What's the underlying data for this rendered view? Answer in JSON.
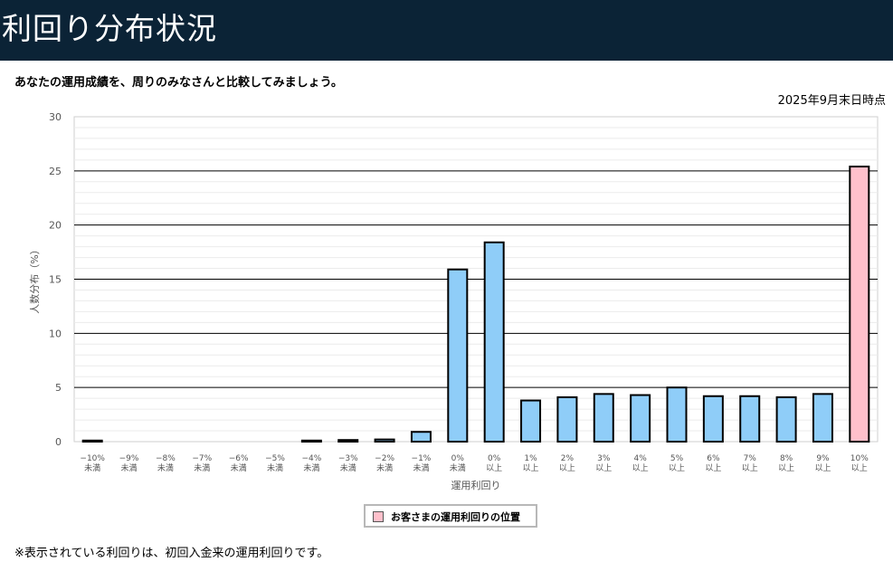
{
  "header": {
    "title": "利回り分布状況"
  },
  "intro": {
    "subtitle": "あなたの運用成績を、周りのみなさんと比較してみましょう。",
    "as_of": "2025年9月末日時点"
  },
  "legend": {
    "label": "お客さまの運用利回りの位置"
  },
  "footnote": "※表示されている利回りは、初回入金来の運用利回りです。",
  "colors": {
    "bar": "#8fcdf8",
    "highlight": "#ffc0cb",
    "header_bg": "#0b2336"
  },
  "chart_data": {
    "type": "bar",
    "xlabel": "運用利回り",
    "ylabel": "人数分布（%）",
    "ylim": [
      0,
      30
    ],
    "yticks": [
      0,
      5,
      10,
      15,
      20,
      25,
      30
    ],
    "grid": true,
    "categories": [
      [
        "−10%",
        "未満"
      ],
      [
        "−9%",
        "未満"
      ],
      [
        "−8%",
        "未満"
      ],
      [
        "−7%",
        "未満"
      ],
      [
        "−6%",
        "未満"
      ],
      [
        "−5%",
        "未満"
      ],
      [
        "−4%",
        "未満"
      ],
      [
        "−3%",
        "未満"
      ],
      [
        "−2%",
        "未満"
      ],
      [
        "−1%",
        "未満"
      ],
      [
        "0%",
        "未満"
      ],
      [
        "0%",
        "以上"
      ],
      [
        "1%",
        "以上"
      ],
      [
        "2%",
        "以上"
      ],
      [
        "3%",
        "以上"
      ],
      [
        "4%",
        "以上"
      ],
      [
        "5%",
        "以上"
      ],
      [
        "6%",
        "以上"
      ],
      [
        "7%",
        "以上"
      ],
      [
        "8%",
        "以上"
      ],
      [
        "9%",
        "以上"
      ],
      [
        "10%",
        "以上"
      ]
    ],
    "values": [
      0.1,
      0,
      0,
      0,
      0,
      0,
      0.1,
      0.15,
      0.2,
      0.9,
      15.9,
      18.4,
      3.8,
      4.1,
      4.4,
      4.3,
      5.0,
      4.2,
      4.2,
      4.1,
      4.4,
      25.4
    ],
    "highlight_index": 21
  }
}
